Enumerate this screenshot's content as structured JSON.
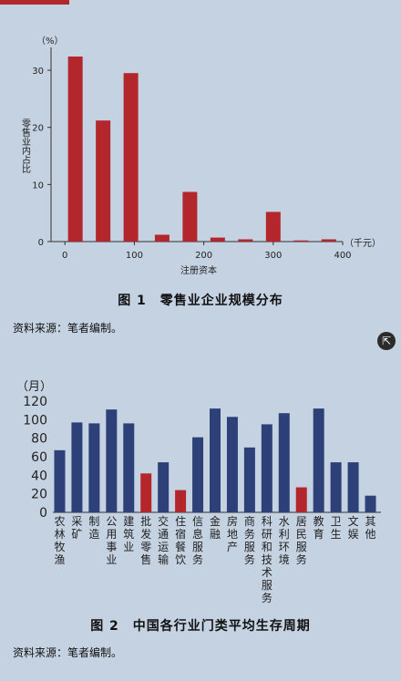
{
  "chart_data": [
    {
      "type": "bar",
      "x": [
        15,
        55,
        95,
        140,
        180,
        220,
        260,
        300,
        340,
        380
      ],
      "values": [
        32.4,
        21.2,
        29.5,
        1.2,
        8.7,
        0.7,
        0.4,
        5.2,
        0.2,
        0.4
      ],
      "ylabel": "零售业内占比",
      "ylabel_unit": "（%）",
      "xlabel": "注册资本",
      "xlabel_unit": "（千元）",
      "xticks": [
        0,
        100,
        200,
        300,
        400
      ],
      "yticks": [
        0,
        10,
        20,
        30
      ],
      "xlim": [
        -20,
        400
      ],
      "ylim": [
        0,
        34
      ],
      "color": "#b3272c",
      "grid": false
    },
    {
      "type": "bar",
      "categories": [
        "农林牧渔",
        "采矿",
        "制造",
        "公用事业",
        "建筑业",
        "批发零售",
        "交通运输",
        "住宿餐饮",
        "信息服务",
        "金融",
        "房地产",
        "商务服务",
        "科研和技术服务",
        "水利环境",
        "居民服务",
        "教育",
        "卫生",
        "文娱",
        "其他"
      ],
      "values": [
        67,
        97,
        96,
        111,
        96,
        42,
        54,
        24,
        81,
        112,
        103,
        70,
        95,
        107,
        27,
        112,
        54,
        54,
        18
      ],
      "highlight": [
        "批发零售",
        "住宿餐饮",
        "居民服务"
      ],
      "ylabel_unit": "（月）",
      "yticks": [
        0,
        20,
        40,
        60,
        80,
        100,
        120
      ],
      "ylim": [
        0,
        120
      ],
      "colors": {
        "default": "#2d4178",
        "highlight": "#b3272c"
      },
      "grid": false
    }
  ],
  "captions": {
    "fig1": "图 1　零售业企业规模分布",
    "fig2": "图 2　中国各行业门类平均生存周期",
    "source1": "资料来源：笔者编制。",
    "source2": "资料来源：笔者编制。"
  },
  "share_icon": "share-icon"
}
